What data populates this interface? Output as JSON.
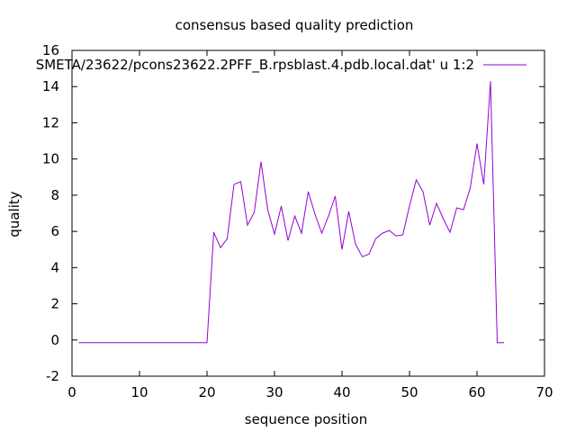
{
  "chart_data": {
    "type": "line",
    "title": "consensus based quality prediction",
    "xlabel": "sequence position",
    "ylabel": "quality",
    "xlim": [
      0,
      70
    ],
    "ylim": [
      -2,
      16
    ],
    "xticks": [
      0,
      10,
      20,
      30,
      40,
      50,
      60,
      70
    ],
    "yticks": [
      -2,
      0,
      2,
      4,
      6,
      8,
      10,
      12,
      14,
      16
    ],
    "grid": false,
    "legend": "top-right",
    "series": [
      {
        "name": "SMETA/23622/pcons23622.2PFF_B.rpsblast.4.pdb.local.dat' u 1:2",
        "color": "#9400d3",
        "x": [
          1,
          2,
          3,
          4,
          5,
          6,
          7,
          8,
          9,
          10,
          11,
          12,
          13,
          14,
          15,
          16,
          17,
          18,
          19,
          20,
          21,
          22,
          23,
          24,
          25,
          26,
          27,
          28,
          29,
          30,
          31,
          32,
          33,
          34,
          35,
          36,
          37,
          38,
          39,
          40,
          41,
          42,
          43,
          44,
          45,
          46,
          47,
          48,
          49,
          50,
          51,
          52,
          53,
          54,
          55,
          56,
          57,
          58,
          59,
          60,
          61,
          62,
          63,
          64
        ],
        "y": [
          -0.15,
          -0.15,
          -0.15,
          -0.15,
          -0.15,
          -0.15,
          -0.15,
          -0.15,
          -0.15,
          -0.15,
          -0.15,
          -0.15,
          -0.15,
          -0.15,
          -0.15,
          -0.15,
          -0.15,
          -0.15,
          -0.15,
          -0.15,
          5.95,
          5.1,
          5.6,
          8.6,
          8.75,
          6.35,
          7.05,
          9.85,
          7.2,
          5.85,
          7.4,
          5.5,
          6.85,
          5.9,
          8.2,
          6.95,
          5.9,
          6.85,
          7.95,
          5.0,
          7.1,
          5.3,
          4.6,
          4.75,
          5.6,
          5.9,
          6.05,
          5.75,
          5.8,
          7.4,
          8.85,
          8.2,
          6.35,
          7.55,
          6.7,
          5.95,
          7.3,
          7.2,
          8.4,
          10.85,
          8.6,
          14.3,
          -0.15,
          -0.15
        ]
      }
    ]
  }
}
